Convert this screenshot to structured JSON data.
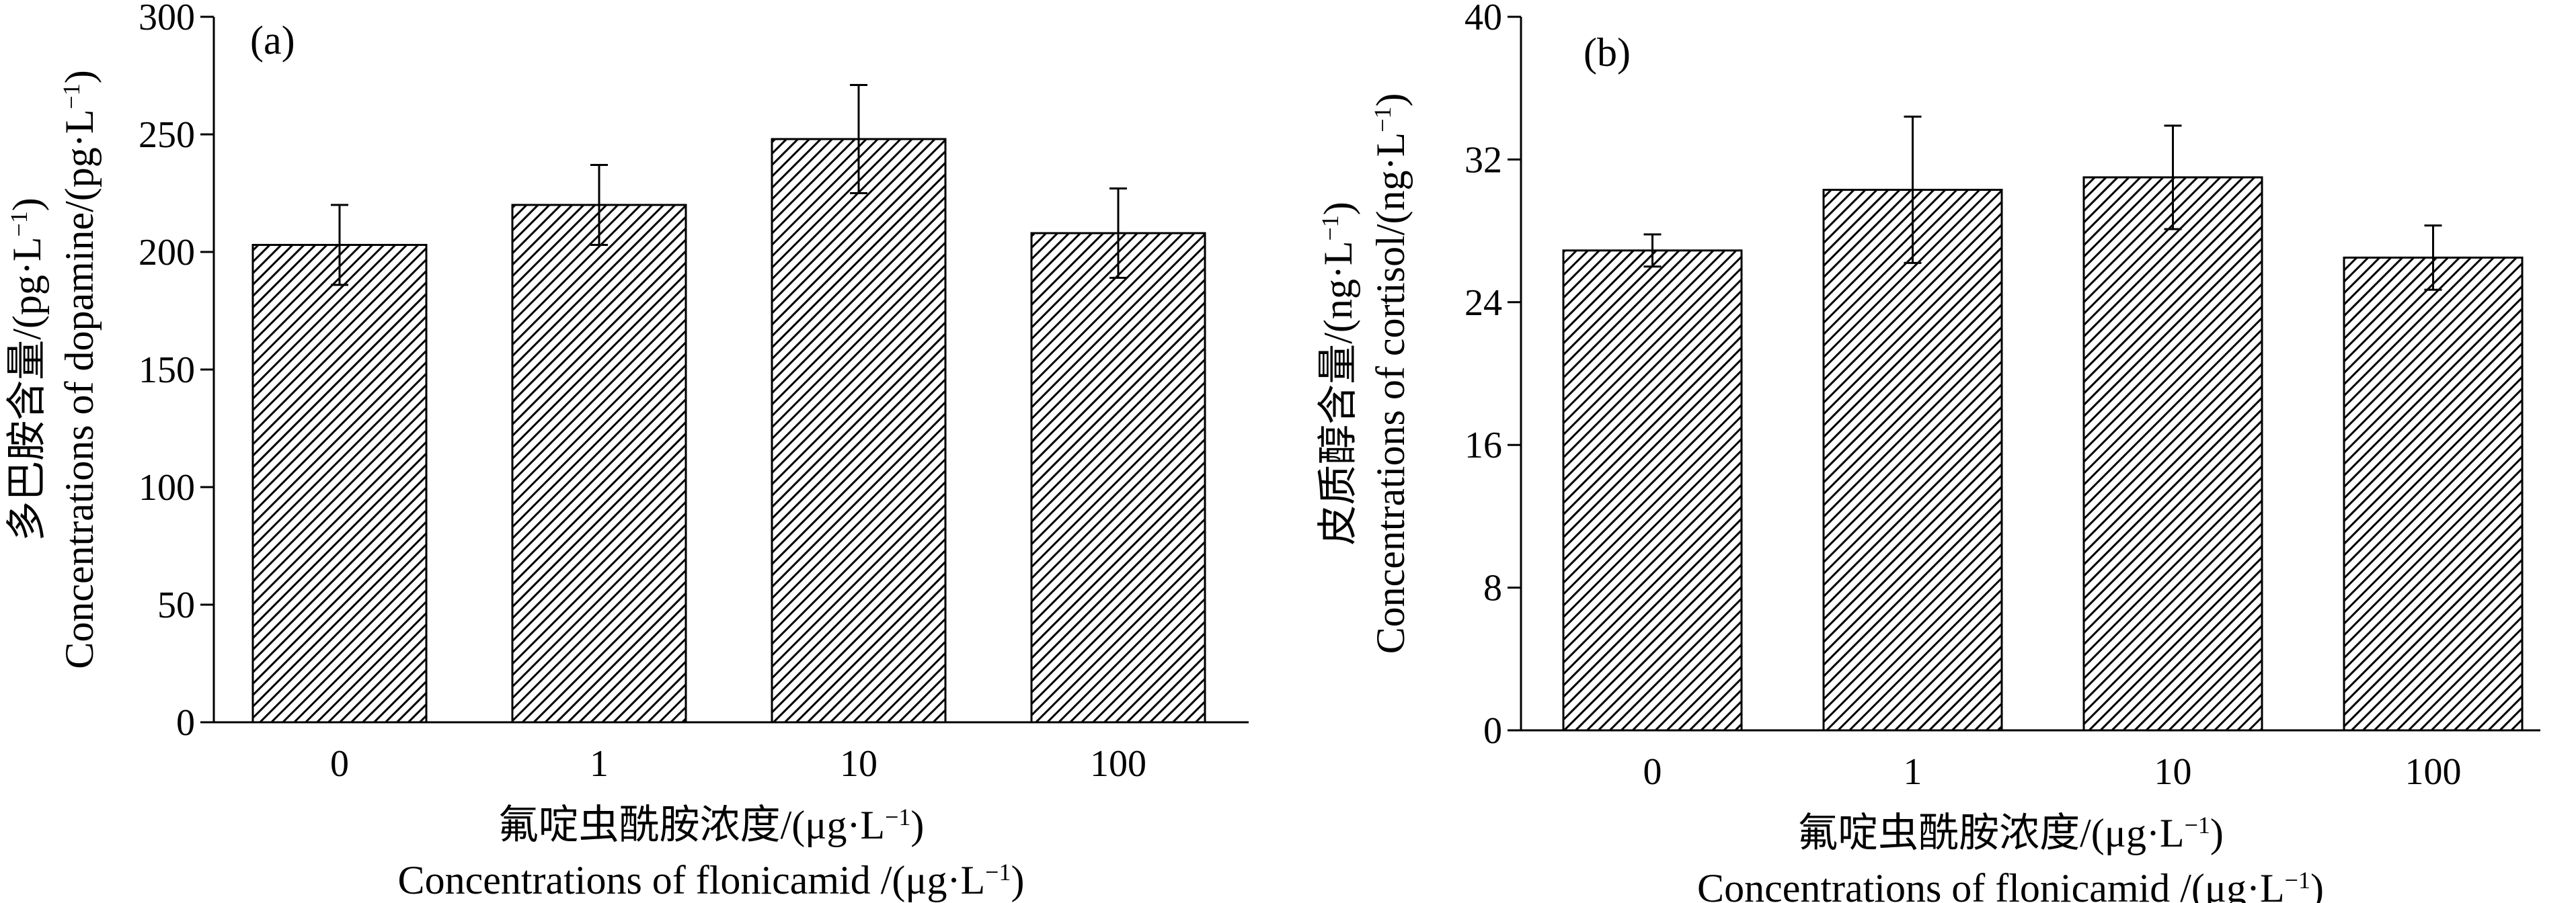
{
  "chart_data": [
    {
      "type": "bar",
      "panel_label": "(a)",
      "categories": [
        "0",
        "1",
        "10",
        "100"
      ],
      "values": [
        203,
        220,
        248,
        208
      ],
      "errors": [
        17,
        17,
        23,
        19
      ],
      "ylim": [
        0,
        300
      ],
      "yticks": [
        0,
        50,
        100,
        150,
        200,
        250,
        300
      ],
      "ylabel": {
        "zh_main": "多巴胺含量/(pg·L",
        "zh_sup": "−1",
        "zh_close": ")",
        "en_main": "Concentrations of dopamine/(pg·L",
        "en_sup": "−1",
        "en_close": ")"
      },
      "xlabel": {
        "zh_main": "氟啶虫酰胺浓度/(μg·L",
        "zh_sup": "−1",
        "zh_close": ")",
        "en_main": "Concentrations of flonicamid /(μg·L",
        "en_sup": "−1",
        "en_close": ")"
      },
      "bar_pattern": "diagonal-hatch",
      "grid": false
    },
    {
      "type": "bar",
      "panel_label": "(b)",
      "categories": [
        "0",
        "1",
        "10",
        "100"
      ],
      "values": [
        26.9,
        30.3,
        31.0,
        26.5
      ],
      "errors": [
        0.9,
        4.1,
        2.9,
        1.8
      ],
      "ylim": [
        0,
        40
      ],
      "yticks": [
        0,
        8,
        16,
        24,
        32,
        40
      ],
      "ylabel": {
        "zh_main": "皮质醇含量/(ng·L",
        "zh_sup": "−1",
        "zh_close": ")",
        "en_main": "Concentrations of cortisol/(ng·L",
        "en_sup": "−1",
        "en_close": ")"
      },
      "xlabel": {
        "zh_main": "氟啶虫酰胺浓度/(μg·L",
        "zh_sup": "−1",
        "zh_close": ")",
        "en_main": "Concentrations of flonicamid /(μg·L",
        "en_sup": "−1",
        "en_close": ")"
      },
      "bar_pattern": "diagonal-hatch",
      "grid": false
    }
  ]
}
